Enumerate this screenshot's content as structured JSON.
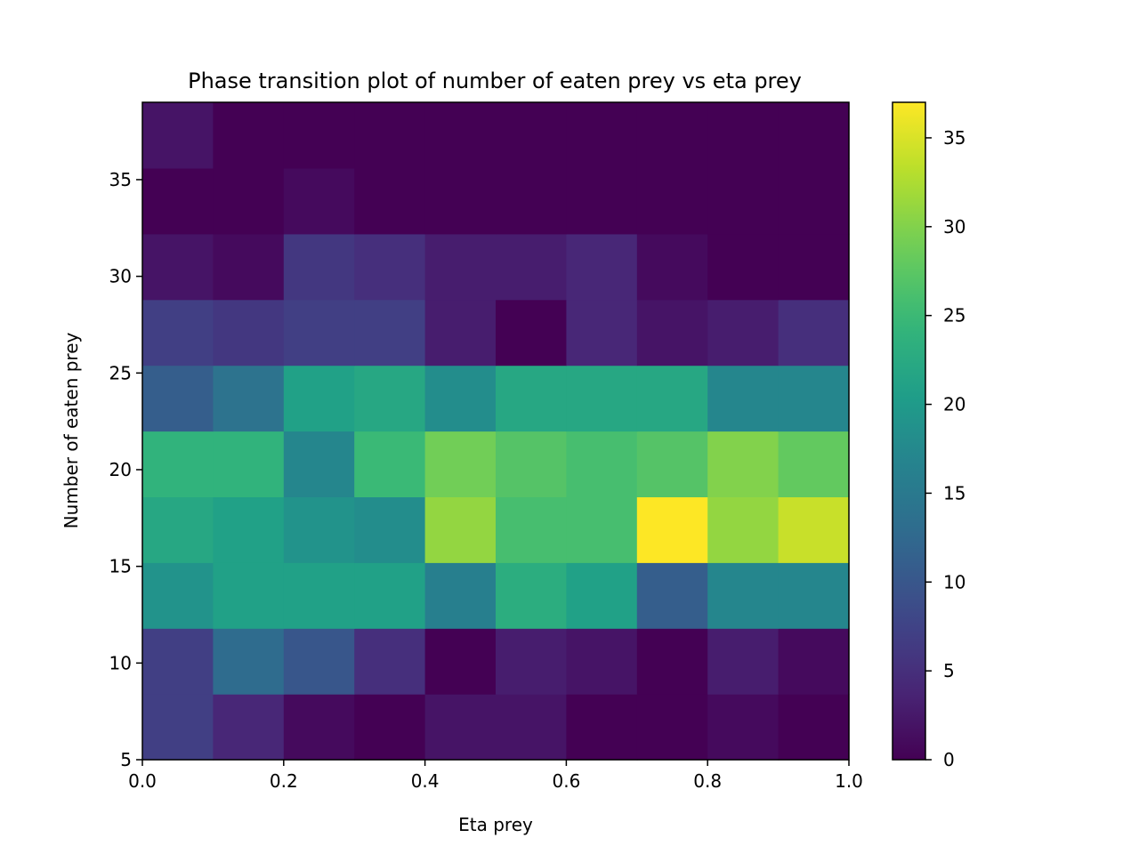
{
  "chart_data": {
    "type": "heatmap",
    "title": "Phase transition plot of number of eaten prey vs eta prey",
    "xlabel": "Eta prey",
    "ylabel": "Number of eaten prey",
    "xlim": [
      0.0,
      1.0
    ],
    "ylim": [
      5,
      39
    ],
    "x_edges": [
      0.0,
      0.1,
      0.2,
      0.3,
      0.4,
      0.5,
      0.6,
      0.7,
      0.8,
      0.9,
      1.0
    ],
    "y_edges": [
      5,
      8.4,
      11.8,
      15.2,
      18.6,
      22,
      25.4,
      28.8,
      32.2,
      35.6,
      39
    ],
    "x_ticks": [
      "0.0",
      "0.2",
      "0.4",
      "0.6",
      "0.8",
      "1.0"
    ],
    "y_ticks": [
      "5",
      "10",
      "15",
      "20",
      "25",
      "30",
      "35"
    ],
    "values": [
      [
        7,
        4,
        1,
        0,
        2,
        2,
        0,
        0,
        1,
        0
      ],
      [
        7,
        13,
        10,
        5,
        0,
        3,
        2,
        0,
        3,
        1
      ],
      [
        19,
        21,
        21,
        21,
        16,
        23,
        21,
        11,
        17,
        17
      ],
      [
        22,
        21,
        19,
        18,
        31,
        26,
        26,
        37,
        31,
        34
      ],
      [
        24,
        24,
        17,
        25,
        29,
        27,
        26,
        27,
        30,
        28
      ],
      [
        11,
        14,
        21,
        22,
        18,
        22,
        22,
        22,
        17,
        17
      ],
      [
        7,
        6,
        7,
        7,
        3,
        0,
        4,
        2,
        3,
        5
      ],
      [
        2,
        1,
        6,
        5,
        3,
        3,
        4,
        1,
        0,
        0
      ],
      [
        0,
        0,
        1,
        0,
        0,
        0,
        0,
        0,
        0,
        0
      ],
      [
        2,
        0,
        0,
        0,
        0,
        0,
        0,
        0,
        0,
        0
      ]
    ],
    "colorbar": {
      "colormap": "viridis",
      "vmin": 0,
      "vmax": 37,
      "ticks": [
        "0",
        "5",
        "10",
        "15",
        "20",
        "25",
        "30",
        "35"
      ]
    },
    "grid": false
  }
}
